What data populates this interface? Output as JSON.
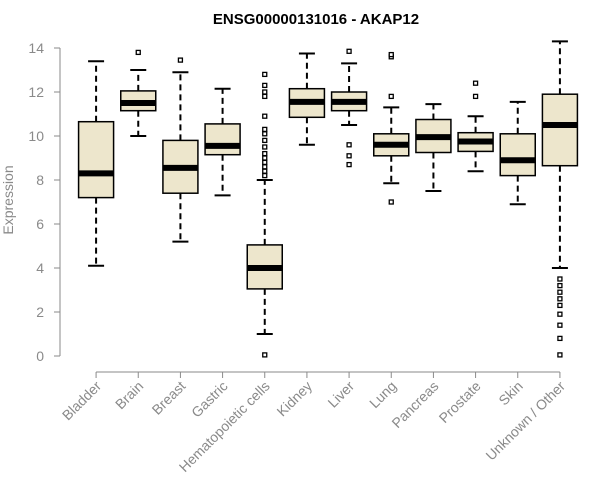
{
  "chart_data": {
    "type": "box",
    "title": "ENSG00000131016 - AKAP12",
    "xlabel": "",
    "ylabel": "Expression",
    "ylim": [
      0,
      14.5
    ],
    "yticks": [
      0,
      2,
      4,
      6,
      8,
      10,
      12,
      14
    ],
    "grid": false,
    "colors": {
      "box_fill": "#ede6cc",
      "box_stroke": "#000000",
      "median": "#000000",
      "axis": "#8a8a8a",
      "text": "#8a8a8a"
    },
    "categories": [
      "Bladder",
      "Brain",
      "Breast",
      "Gastric",
      "Hematopoietic cells",
      "Kidney",
      "Liver",
      "Lung",
      "Pancreas",
      "Prostate",
      "Skin",
      "Unknown / Other"
    ],
    "boxes": [
      {
        "category": "Bladder",
        "whisker_low": 4.1,
        "q1": 7.2,
        "median": 8.3,
        "q3": 10.65,
        "whisker_high": 13.4,
        "outliers": []
      },
      {
        "category": "Brain",
        "whisker_low": 10.0,
        "q1": 11.15,
        "median": 11.5,
        "q3": 12.05,
        "whisker_high": 13.0,
        "outliers": [
          13.8
        ]
      },
      {
        "category": "Breast",
        "whisker_low": 5.2,
        "q1": 7.4,
        "median": 8.55,
        "q3": 9.8,
        "whisker_high": 12.9,
        "outliers": [
          13.45
        ]
      },
      {
        "category": "Gastric",
        "whisker_low": 7.3,
        "q1": 9.15,
        "median": 9.55,
        "q3": 10.55,
        "whisker_high": 12.15,
        "outliers": []
      },
      {
        "category": "Hematopoietic cells",
        "whisker_low": 1.0,
        "q1": 3.05,
        "median": 4.0,
        "q3": 5.05,
        "whisker_high": 8.0,
        "outliers": [
          0.05,
          8.2,
          8.4,
          8.6,
          8.8,
          9.0,
          9.2,
          9.5,
          9.8,
          10.1,
          10.3,
          10.9,
          11.8,
          12.0,
          12.3,
          12.8
        ]
      },
      {
        "category": "Kidney",
        "whisker_low": 9.6,
        "q1": 10.85,
        "median": 11.55,
        "q3": 12.15,
        "whisker_high": 13.75,
        "outliers": []
      },
      {
        "category": "Liver",
        "whisker_low": 10.5,
        "q1": 11.15,
        "median": 11.55,
        "q3": 12.0,
        "whisker_high": 13.3,
        "outliers": [
          8.7,
          9.1,
          9.6,
          13.85
        ]
      },
      {
        "category": "Lung",
        "whisker_low": 7.85,
        "q1": 9.1,
        "median": 9.6,
        "q3": 10.1,
        "whisker_high": 11.3,
        "outliers": [
          7.0,
          11.8,
          13.6,
          13.7
        ]
      },
      {
        "category": "Pancreas",
        "whisker_low": 7.5,
        "q1": 9.25,
        "median": 9.95,
        "q3": 10.75,
        "whisker_high": 11.45,
        "outliers": []
      },
      {
        "category": "Prostate",
        "whisker_low": 8.4,
        "q1": 9.3,
        "median": 9.75,
        "q3": 10.15,
        "whisker_high": 10.9,
        "outliers": [
          11.8,
          12.4
        ]
      },
      {
        "category": "Skin",
        "whisker_low": 6.9,
        "q1": 8.2,
        "median": 8.9,
        "q3": 10.1,
        "whisker_high": 11.55,
        "outliers": []
      },
      {
        "category": "Unknown / Other",
        "whisker_low": 4.0,
        "q1": 8.65,
        "median": 10.5,
        "q3": 11.9,
        "whisker_high": 14.3,
        "outliers": [
          0.05,
          0.8,
          1.4,
          1.9,
          2.3,
          2.6,
          2.9,
          3.2,
          3.5
        ]
      }
    ]
  }
}
